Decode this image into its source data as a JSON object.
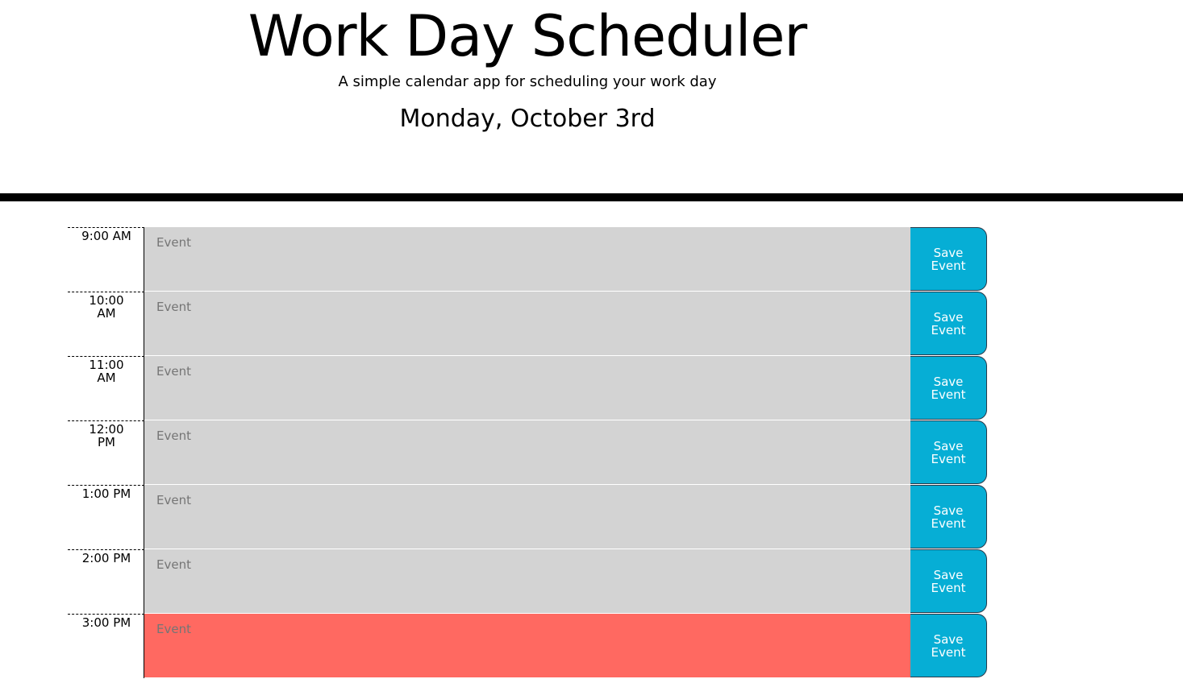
{
  "header": {
    "title": "Work Day Scheduler",
    "subtitle": "A simple calendar app for scheduling your work day",
    "current_day": "Monday, October 3rd"
  },
  "colors": {
    "past": "#d3d3d3",
    "present": "#ff6961",
    "future": "#77dd77",
    "save_button": "#06aed5"
  },
  "timeblocks": [
    {
      "hour": "9:00 AM",
      "placeholder": "Event",
      "value": "",
      "status": "past",
      "save_label": "Save Event"
    },
    {
      "hour": "10:00 AM",
      "placeholder": "Event",
      "value": "",
      "status": "past",
      "save_label": "Save Event"
    },
    {
      "hour": "11:00 AM",
      "placeholder": "Event",
      "value": "",
      "status": "past",
      "save_label": "Save Event"
    },
    {
      "hour": "12:00 PM",
      "placeholder": "Event",
      "value": "",
      "status": "past",
      "save_label": "Save Event"
    },
    {
      "hour": "1:00 PM",
      "placeholder": "Event",
      "value": "",
      "status": "past",
      "save_label": "Save Event"
    },
    {
      "hour": "2:00 PM",
      "placeholder": "Event",
      "value": "",
      "status": "past",
      "save_label": "Save Event"
    },
    {
      "hour": "3:00 PM",
      "placeholder": "Event",
      "value": "",
      "status": "present",
      "save_label": "Save Event"
    }
  ]
}
